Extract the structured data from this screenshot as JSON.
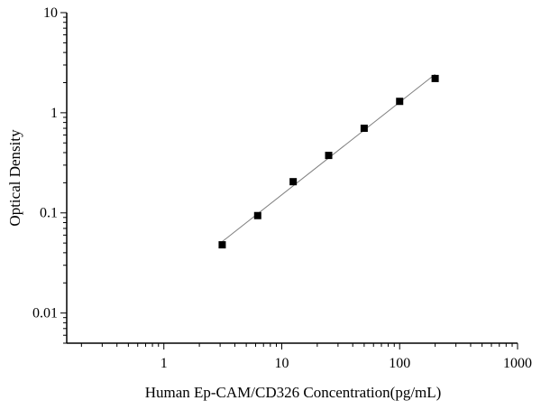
{
  "chart_data": {
    "type": "scatter",
    "title": "",
    "xlabel": "Human Ep-CAM/CD326 Concentration(pg/mL)",
    "ylabel": "Optical Density",
    "xscale": "log",
    "yscale": "log",
    "xlim": [
      0.15,
      1000
    ],
    "ylim": [
      0.005,
      10
    ],
    "x_ticks": [
      1,
      10,
      100,
      1000
    ],
    "x_tick_labels": [
      "1",
      "10",
      "100",
      "1000"
    ],
    "y_ticks": [
      0.01,
      0.1,
      1,
      10
    ],
    "y_tick_labels": [
      "0.01",
      "0.1",
      "1",
      "10"
    ],
    "grid": false,
    "legend": "none",
    "series": [
      {
        "x": [
          3.125,
          6.25,
          12.5,
          25,
          50,
          100,
          200
        ],
        "y": [
          0.048,
          0.094,
          0.205,
          0.375,
          0.7,
          1.3,
          2.2
        ],
        "marker": "square",
        "color": "#000000",
        "fit_line": true,
        "line_color": "#808080"
      }
    ]
  }
}
